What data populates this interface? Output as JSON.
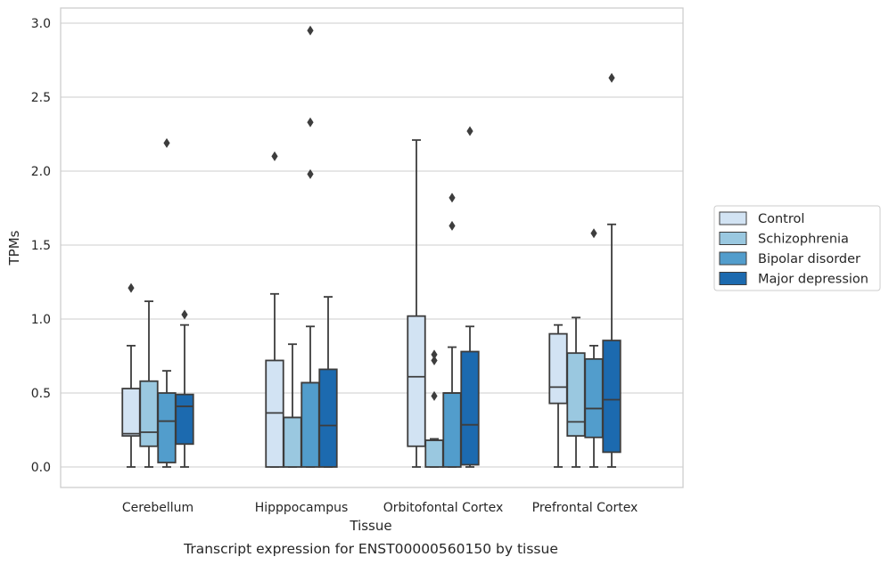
{
  "chart_data": {
    "type": "box",
    "xlabel": "Tissue",
    "ylabel": "TPMs",
    "caption": "Transcript expression for ENST00000560150 by tissue",
    "ylim": [
      -0.14,
      3.1
    ],
    "yticks": [
      "0.0",
      "0.5",
      "1.0",
      "1.5",
      "2.0",
      "2.5",
      "3.0"
    ],
    "grid": true,
    "legend_position": "right",
    "categories": [
      "Cerebellum",
      "Hipppocampus",
      "Orbitofontal Cortex",
      "Prefrontal Cortex"
    ],
    "series": [
      {
        "name": "Control",
        "color": "#d2e3f3",
        "boxes": [
          {
            "whislo": 0.0,
            "q1": 0.21,
            "med": 0.225,
            "q3": 0.53,
            "whishi": 0.82,
            "fliers": [
              1.21
            ]
          },
          {
            "whislo": 0.0,
            "q1": 0.0,
            "med": 0.365,
            "q3": 0.72,
            "whishi": 1.17,
            "fliers": [
              2.1
            ]
          },
          {
            "whislo": 0.0,
            "q1": 0.14,
            "med": 0.61,
            "q3": 1.02,
            "whishi": 2.21,
            "fliers": []
          },
          {
            "whislo": 0.0,
            "q1": 0.43,
            "med": 0.54,
            "q3": 0.9,
            "whishi": 0.96,
            "fliers": []
          }
        ]
      },
      {
        "name": "Schizophrenia",
        "color": "#9ac8e0",
        "boxes": [
          {
            "whislo": 0.0,
            "q1": 0.14,
            "med": 0.235,
            "q3": 0.58,
            "whishi": 1.12,
            "fliers": []
          },
          {
            "whislo": 0.0,
            "q1": 0.0,
            "med": 0.335,
            "q3": 0.335,
            "whishi": 0.83,
            "fliers": []
          },
          {
            "whislo": 0.0,
            "q1": 0.0,
            "med": 0.18,
            "q3": 0.18,
            "whishi": 0.19,
            "fliers": [
              0.48,
              0.72,
              0.76
            ]
          },
          {
            "whislo": 0.0,
            "q1": 0.21,
            "med": 0.305,
            "q3": 0.77,
            "whishi": 1.01,
            "fliers": []
          }
        ]
      },
      {
        "name": "Bipolar disorder",
        "color": "#529dcc",
        "boxes": [
          {
            "whislo": 0.0,
            "q1": 0.03,
            "med": 0.31,
            "q3": 0.5,
            "whishi": 0.65,
            "fliers": [
              2.19
            ]
          },
          {
            "whislo": 0.0,
            "q1": 0.0,
            "med": 0.57,
            "q3": 0.57,
            "whishi": 0.95,
            "fliers": [
              1.98,
              2.33,
              2.95
            ]
          },
          {
            "whislo": 0.0,
            "q1": 0.0,
            "med": 0.5,
            "q3": 0.5,
            "whishi": 0.81,
            "fliers": [
              1.63,
              1.82
            ]
          },
          {
            "whislo": 0.0,
            "q1": 0.2,
            "med": 0.395,
            "q3": 0.73,
            "whishi": 0.82,
            "fliers": [
              1.58
            ]
          }
        ]
      },
      {
        "name": "Major depression",
        "color": "#1c6aaf",
        "boxes": [
          {
            "whislo": 0.0,
            "q1": 0.155,
            "med": 0.41,
            "q3": 0.49,
            "whishi": 0.96,
            "fliers": [
              1.03
            ]
          },
          {
            "whislo": 0.0,
            "q1": 0.0,
            "med": 0.28,
            "q3": 0.66,
            "whishi": 1.15,
            "fliers": []
          },
          {
            "whislo": 0.0,
            "q1": 0.015,
            "med": 0.285,
            "q3": 0.78,
            "whishi": 0.95,
            "fliers": [
              2.27
            ]
          },
          {
            "whislo": 0.0,
            "q1": 0.1,
            "med": 0.455,
            "q3": 0.855,
            "whishi": 1.64,
            "fliers": [
              2.63
            ]
          }
        ]
      }
    ]
  }
}
